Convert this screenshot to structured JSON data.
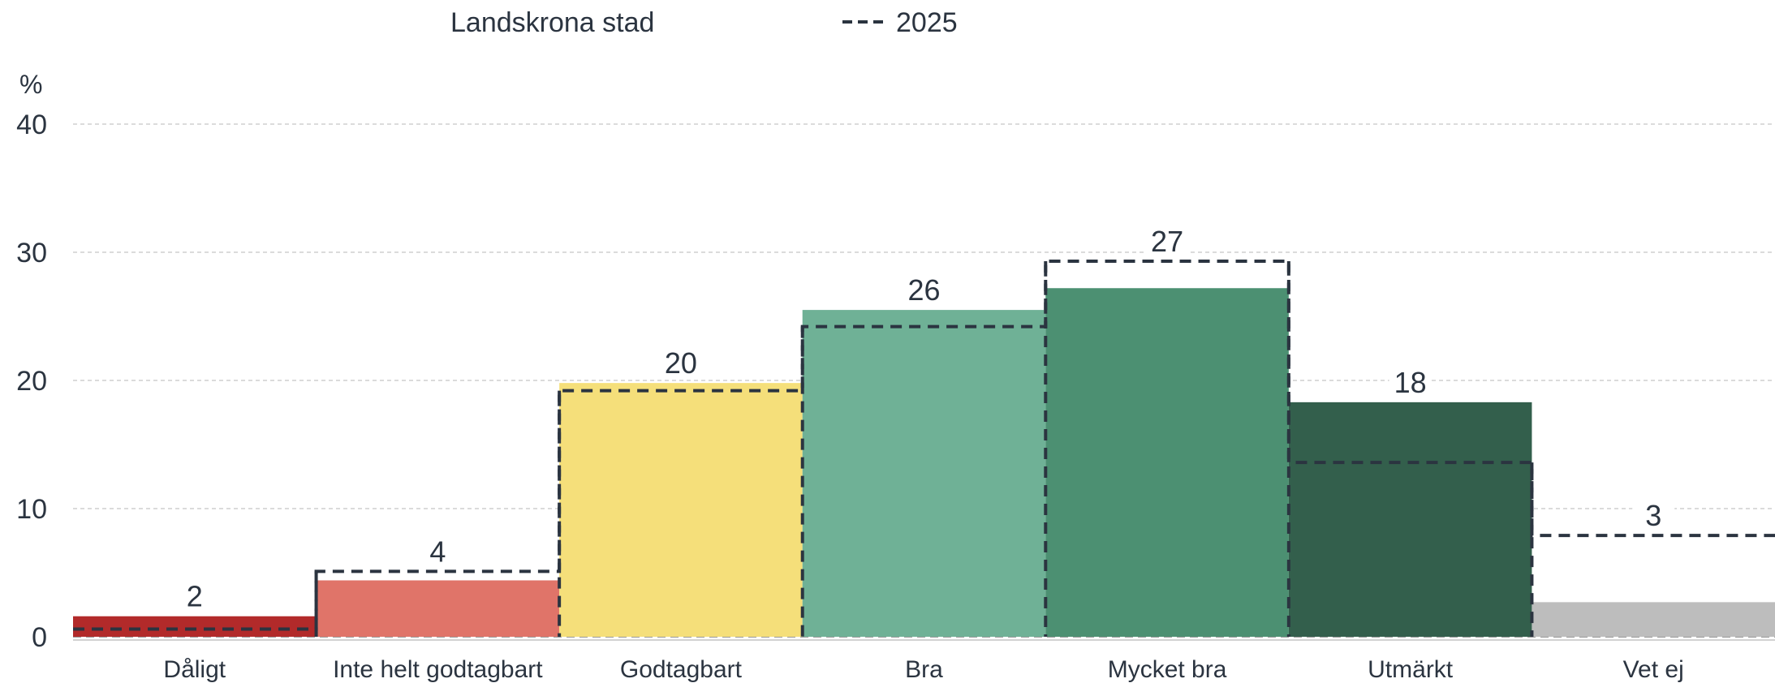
{
  "chart_data": {
    "type": "bar",
    "categories": [
      "Dåligt",
      "Inte helt godtagbart",
      "Godtagbart",
      "Bra",
      "Mycket bra",
      "Utmärkt",
      "Vet ej"
    ],
    "series": [
      {
        "name": "Landskrona stad",
        "values": [
          1.6,
          4.4,
          19.8,
          25.5,
          27.2,
          18.3,
          2.7
        ],
        "labels": [
          "2",
          "4",
          "20",
          "26",
          "27",
          "18",
          "3"
        ],
        "colors": [
          "#b22a2a",
          "#e07469",
          "#f5df7a",
          "#6fb196",
          "#4c9072",
          "#335f4c",
          "#bdbdbd"
        ]
      },
      {
        "name": "2025",
        "style": "dashed",
        "values": [
          0.6,
          5.1,
          19.2,
          24.2,
          29.3,
          13.6,
          7.9
        ],
        "color": "#2b3440"
      }
    ],
    "ylabel": "%",
    "ylim": [
      0,
      40
    ],
    "yticks": [
      0,
      10,
      20,
      30,
      40
    ],
    "grid": true,
    "legend_position": "top-left"
  }
}
